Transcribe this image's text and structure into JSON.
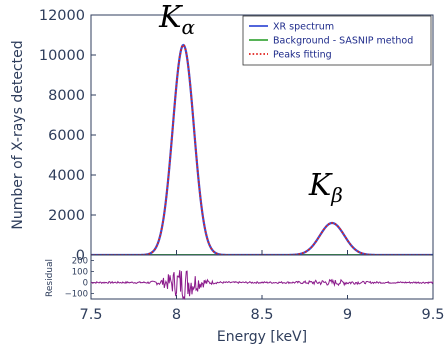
{
  "chart_data": [
    {
      "type": "line",
      "xlabel": "Energy [keV]",
      "ylabel": "Number of X-rays detected",
      "xlim": [
        7.5,
        9.5
      ],
      "ylim": [
        0,
        12000
      ],
      "x_ticks": [
        "7.5",
        "8",
        "8.5",
        "9",
        "9.5"
      ],
      "y_ticks": [
        "0",
        "2000",
        "4000",
        "6000",
        "8000",
        "10000",
        "12000"
      ],
      "grid": false,
      "legend_position": "top-right",
      "peaks": [
        {
          "center": 8.04,
          "height": 10500,
          "sigma": 0.062
        },
        {
          "center": 8.91,
          "height": 1600,
          "sigma": 0.072
        }
      ],
      "series": [
        {
          "name": "XR spectrum",
          "color": "#3a4fd6",
          "style": "solid"
        },
        {
          "name": "Background - SASNIP method",
          "color": "#3fa83f",
          "style": "solid",
          "values_constant": 0
        },
        {
          "name": "Peaks fitting",
          "color": "#e0201c",
          "style": "dotted"
        }
      ],
      "annotations": [
        {
          "label": "K",
          "subscript": "α",
          "x": 8.05,
          "y": 11400
        },
        {
          "label": "K",
          "subscript": "β",
          "x": 8.92,
          "y": 3000
        }
      ]
    },
    {
      "type": "line",
      "ylabel": "Residual",
      "xlim": [
        7.5,
        9.5
      ],
      "ylim": [
        -150,
        250
      ],
      "y_ticks": [
        "200",
        "100",
        "0",
        "−100"
      ],
      "series": [
        {
          "name": "Residual",
          "color": "#8b1a8b",
          "style": "solid"
        }
      ]
    }
  ]
}
